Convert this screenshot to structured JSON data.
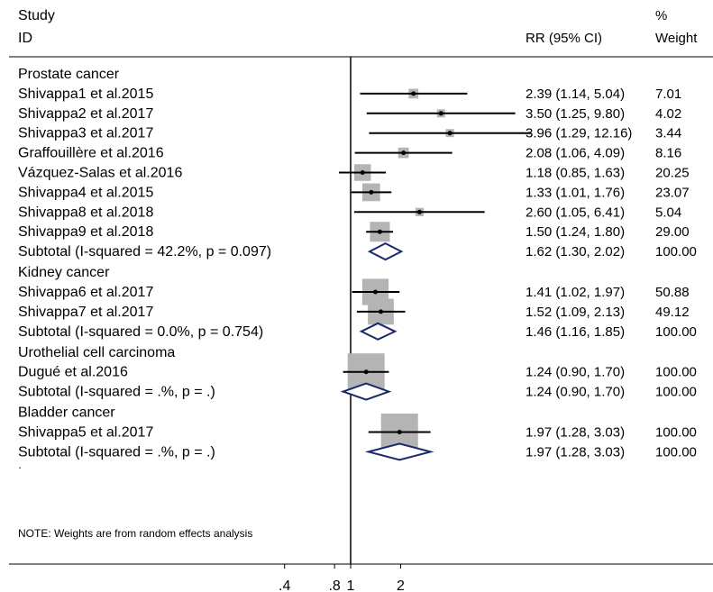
{
  "header": {
    "study": "Study",
    "id": "ID",
    "rr": "RR (95% CI)",
    "pct": "%",
    "weight": "Weight"
  },
  "note": "NOTE: Weights are from random effects analysis",
  "chart_data": {
    "type": "forest",
    "title": "",
    "scale": "log",
    "null_value": 1,
    "x_ticks": [
      ".4",
      ".8",
      "1",
      "2"
    ],
    "x_tick_values": [
      0.4,
      0.8,
      1,
      2
    ],
    "groups": [
      {
        "name": "Prostate cancer",
        "studies": [
          {
            "label": "Shivappa1 et al.2015",
            "rr": 2.39,
            "lo": 1.14,
            "hi": 5.04,
            "ci_text": "2.39 (1.14, 5.04)",
            "weight": "7.01",
            "w": 7.01
          },
          {
            "label": "Shivappa2 et al.2017",
            "rr": 3.5,
            "lo": 1.25,
            "hi": 9.8,
            "ci_text": "3.50 (1.25, 9.80)",
            "weight": "4.02",
            "w": 4.02
          },
          {
            "label": "Shivappa3 et al.2017",
            "rr": 3.96,
            "lo": 1.29,
            "hi": 12.16,
            "ci_text": "3.96 (1.29, 12.16)",
            "weight": "3.44",
            "w": 3.44
          },
          {
            "label": "Graffouillère et al.2016",
            "rr": 2.08,
            "lo": 1.06,
            "hi": 4.09,
            "ci_text": "2.08 (1.06, 4.09)",
            "weight": "8.16",
            "w": 8.16
          },
          {
            "label": "Vázquez-Salas et al.2016",
            "rr": 1.18,
            "lo": 0.85,
            "hi": 1.63,
            "ci_text": "1.18 (0.85, 1.63)",
            "weight": "20.25",
            "w": 20.25
          },
          {
            "label": "Shivappa4 et al.2015",
            "rr": 1.33,
            "lo": 1.01,
            "hi": 1.76,
            "ci_text": "1.33 (1.01, 1.76)",
            "weight": "23.07",
            "w": 23.07
          },
          {
            "label": "Shivappa8 et al.2018",
            "rr": 2.6,
            "lo": 1.05,
            "hi": 6.41,
            "ci_text": "2.60 (1.05, 6.41)",
            "weight": "5.04",
            "w": 5.04
          },
          {
            "label": "Shivappa9 et al.2018",
            "rr": 1.5,
            "lo": 1.24,
            "hi": 1.8,
            "ci_text": "1.50 (1.24, 1.80)",
            "weight": "29.00",
            "w": 29.0
          }
        ],
        "subtotal": {
          "label": "Subtotal  (I-squared = 42.2%, p = 0.097)",
          "rr": 1.62,
          "lo": 1.3,
          "hi": 2.02,
          "ci_text": "1.62 (1.30, 2.02)",
          "weight": "100.00"
        }
      },
      {
        "name": "Kidney cancer",
        "studies": [
          {
            "label": "Shivappa6 et al.2017",
            "rr": 1.41,
            "lo": 1.02,
            "hi": 1.97,
            "ci_text": "1.41 (1.02, 1.97)",
            "weight": "50.88",
            "w": 50.88
          },
          {
            "label": "Shivappa7 et al.2017",
            "rr": 1.52,
            "lo": 1.09,
            "hi": 2.13,
            "ci_text": "1.52 (1.09, 2.13)",
            "weight": "49.12",
            "w": 49.12
          }
        ],
        "subtotal": {
          "label": "Subtotal  (I-squared = 0.0%, p = 0.754)",
          "rr": 1.46,
          "lo": 1.16,
          "hi": 1.85,
          "ci_text": "1.46 (1.16, 1.85)",
          "weight": "100.00"
        }
      },
      {
        "name": "Urothelial cell carcinoma",
        "studies": [
          {
            "label": "Dugué et al.2016",
            "rr": 1.24,
            "lo": 0.9,
            "hi": 1.7,
            "ci_text": "1.24 (0.90, 1.70)",
            "weight": "100.00",
            "w": 100.0
          }
        ],
        "subtotal": {
          "label": "Subtotal  (I-squared = .%, p = .)",
          "rr": 1.24,
          "lo": 0.9,
          "hi": 1.7,
          "ci_text": "1.24 (0.90, 1.70)",
          "weight": "100.00"
        }
      },
      {
        "name": "Bladder cancer",
        "studies": [
          {
            "label": "Shivappa5 et al.2017",
            "rr": 1.97,
            "lo": 1.28,
            "hi": 3.03,
            "ci_text": "1.97 (1.28, 3.03)",
            "weight": "100.00",
            "w": 100.0
          }
        ],
        "subtotal": {
          "label": "Subtotal  (I-squared = .%, p = .)",
          "rr": 1.97,
          "lo": 1.28,
          "hi": 3.03,
          "ci_text": "1.97 (1.28, 3.03)",
          "weight": "100.00"
        }
      }
    ],
    "colors": {
      "box": "#b4b4b4",
      "diamond": "#1a2a6c",
      "line": "#000000"
    }
  }
}
